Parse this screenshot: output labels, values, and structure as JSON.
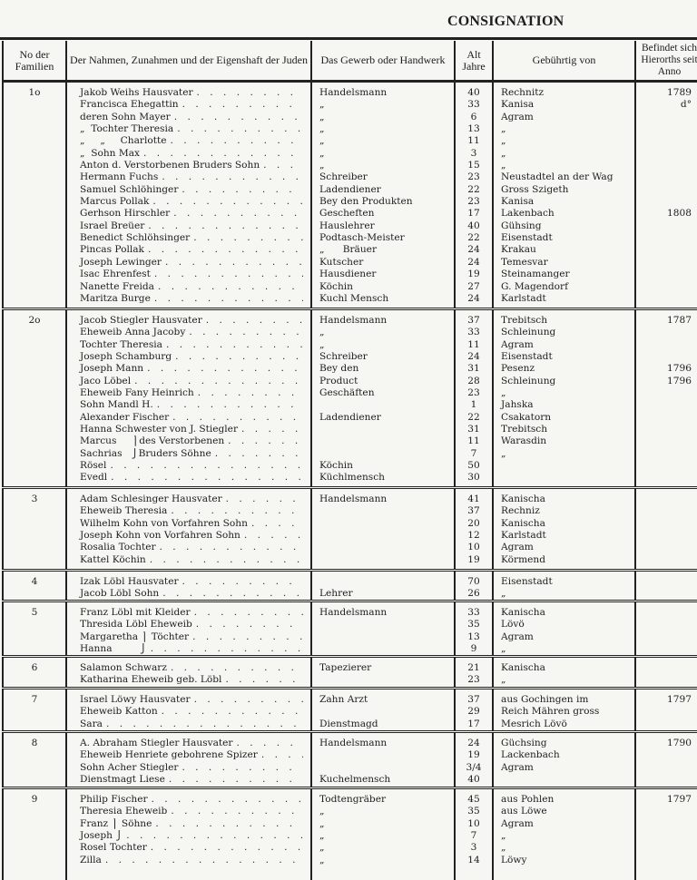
{
  "title": "CONSIGNATION",
  "headers": {
    "family_no": "No der Familien",
    "names": "Der Nahmen, Zunahmen und der Eigenshaft der Juden",
    "trade": "Das Gewerb oder Handwerk",
    "age": "Alt Jahre",
    "origin": "Gebührtig von",
    "since": "Befindet sich Hierorths seit Anno"
  },
  "families": [
    {
      "no": "1o",
      "members": [
        {
          "name": "Jakob Weihs Hausvater",
          "trade": "Handelsmann",
          "age": "40",
          "origin": "Rechnitz",
          "since": "1789"
        },
        {
          "name": "Francisca Ehegattin",
          "trade": "„",
          "age": "33",
          "origin": "Kanisa",
          "since": "d°"
        },
        {
          "name": "deren Sohn Mayer",
          "trade": "„",
          "age": "6",
          "origin": "Agram",
          "since": ""
        },
        {
          "name": "„  Tochter Theresia",
          "trade": "„",
          "age": "13",
          "origin": "„",
          "since": ""
        },
        {
          "name": "„     „     Charlotte",
          "trade": "„",
          "age": "11",
          "origin": "„",
          "since": ""
        },
        {
          "name": "„  Sohn Max",
          "trade": "„",
          "age": "3",
          "origin": "„",
          "since": ""
        },
        {
          "name": "Anton d. Verstorbenen Bruders Sohn",
          "trade": "„",
          "age": "15",
          "origin": "„",
          "since": ""
        },
        {
          "name": "Hermann Fuchs",
          "trade": "Schreiber",
          "age": "23",
          "origin": "Neustadtel an der Wag",
          "since": ""
        },
        {
          "name": "Samuel Schlöhinger",
          "trade": "Ladendiener",
          "age": "22",
          "origin": "Gross Szigeth",
          "since": ""
        },
        {
          "name": "Marcus Pollak",
          "trade": "Bey den Produkten",
          "age": "23",
          "origin": "Kanisa",
          "since": ""
        },
        {
          "name": "Gerhson Hirschler",
          "trade": "Gescheften",
          "age": "17",
          "origin": "Lakenbach",
          "since": "1808"
        },
        {
          "name": "Israel Breüer",
          "trade": "Hauslehrer",
          "age": "40",
          "origin": "Gühsing",
          "since": ""
        },
        {
          "name": "Benedict Schlöhsinger",
          "trade": "Podtasch-Meister",
          "age": "22",
          "origin": "Eisenstadt",
          "since": ""
        },
        {
          "name": "Pincas Pollak",
          "trade": "„      Bräuer",
          "age": "24",
          "origin": "Krakau",
          "since": ""
        },
        {
          "name": "Joseph Lewinger",
          "trade": "Kutscher",
          "age": "24",
          "origin": "Temesvar",
          "since": ""
        },
        {
          "name": "Isac Ehrenfest",
          "trade": "Hausdiener",
          "age": "19",
          "origin": "Steinamanger",
          "since": ""
        },
        {
          "name": "Nanette Freida",
          "trade": "Köchin",
          "age": "27",
          "origin": "G. Magendorf",
          "since": ""
        },
        {
          "name": "Maritza Burge",
          "trade": "Kuchl Mensch",
          "age": "24",
          "origin": "Karlstadt",
          "since": ""
        }
      ]
    },
    {
      "no": "2o",
      "members": [
        {
          "name": "Jacob Stiegler Hausvater",
          "trade": "Handelsmann",
          "age": "37",
          "origin": "Trebitsch",
          "since": "1787"
        },
        {
          "name": "Eheweib Anna Jacoby",
          "trade": "„",
          "age": "33",
          "origin": "Schleinung",
          "since": ""
        },
        {
          "name": "Tochter Theresia",
          "trade": "„",
          "age": "11",
          "origin": "Agram",
          "since": ""
        },
        {
          "name": "Joseph Schamburg",
          "trade": "Schreiber",
          "age": "24",
          "origin": "Eisenstadt",
          "since": ""
        },
        {
          "name": "Joseph Mann",
          "trade": "Bey den",
          "age": "31",
          "origin": "Pesenz",
          "since": "1796"
        },
        {
          "name": "Jaco Löbel",
          "trade": "Product",
          "age": "28",
          "origin": "Schleinung",
          "since": "1796"
        },
        {
          "name": "Eheweib Fany Heinrich",
          "trade": "Geschäften",
          "age": "23",
          "origin": "„",
          "since": ""
        },
        {
          "name": "Sohn Mandl H.",
          "trade": "",
          "age": "1",
          "origin": "Jahska",
          "since": ""
        },
        {
          "name": "Alexander Fischer",
          "trade": "Ladendiener",
          "age": "22",
          "origin": "Csakatorn",
          "since": ""
        },
        {
          "name": "Hanna Schwester von J. Stiegler",
          "trade": "",
          "age": "31",
          "origin": "Trebitsch",
          "since": ""
        },
        {
          "name": "Marcus     ⎫des Verstorbenen",
          "trade": "",
          "age": "11",
          "origin": "Warasdin",
          "since": ""
        },
        {
          "name": "Sachrias   ⎭Bruders Söhne",
          "trade": "",
          "age": "7",
          "origin": "„",
          "since": ""
        },
        {
          "name": "Rösel",
          "trade": "Köchin",
          "age": "50",
          "origin": "",
          "since": ""
        },
        {
          "name": "Evedl",
          "trade": "Küchlmensch",
          "age": "30",
          "origin": "",
          "since": ""
        }
      ]
    },
    {
      "no": "3",
      "members": [
        {
          "name": "Adam Schlesinger Hausvater",
          "trade": "Handelsmann",
          "age": "41",
          "origin": "Kanischa",
          "since": ""
        },
        {
          "name": "Eheweib Theresia",
          "trade": "",
          "age": "37",
          "origin": "Rechniz",
          "since": ""
        },
        {
          "name": "Wilhelm Kohn von Vorfahren Sohn",
          "trade": "",
          "age": "20",
          "origin": "Kanischa",
          "since": ""
        },
        {
          "name": "Joseph Kohn von Vorfahren Sohn",
          "trade": "",
          "age": "12",
          "origin": "Karlstadt",
          "since": ""
        },
        {
          "name": "Rosalia Tochter",
          "trade": "",
          "age": "10",
          "origin": "Agram",
          "since": ""
        },
        {
          "name": "Kattel Köchin",
          "trade": "",
          "age": "19",
          "origin": "Körmend",
          "since": ""
        }
      ]
    },
    {
      "no": "4",
      "members": [
        {
          "name": "Izak Löbl Hausvater",
          "trade": "",
          "age": "70",
          "origin": "Eisenstadt",
          "since": ""
        },
        {
          "name": "Jacob Löbl Sohn",
          "trade": "Lehrer",
          "age": "26",
          "origin": "„",
          "since": ""
        }
      ]
    },
    {
      "no": "5",
      "members": [
        {
          "name": "Franz Löbl mit Kleider",
          "trade": "Handelsmann",
          "age": "33",
          "origin": "Kanischa",
          "since": ""
        },
        {
          "name": "Thresida Löbl Eheweib",
          "trade": "",
          "age": "35",
          "origin": "Lövö",
          "since": ""
        },
        {
          "name": "Margaretha ⎫ Töchter",
          "trade": "",
          "age": "13",
          "origin": "Agram",
          "since": ""
        },
        {
          "name": "Hanna         ⎭",
          "trade": "",
          "age": "9",
          "origin": "„",
          "since": ""
        }
      ]
    },
    {
      "no": "6",
      "members": [
        {
          "name": "Salamon Schwarz",
          "trade": "Tapezierer",
          "age": "21",
          "origin": "Kanischa",
          "since": ""
        },
        {
          "name": "Katharina Eheweib geb. Löbl",
          "trade": "",
          "age": "23",
          "origin": "„",
          "since": ""
        }
      ]
    },
    {
      "no": "7",
      "members": [
        {
          "name": "Israel Löwy Hausvater",
          "trade": "Zahn Arzt",
          "age": "37",
          "origin": "aus Gochingen im",
          "since": "1797"
        },
        {
          "name": "Eheweib Katton",
          "trade": "",
          "age": "29",
          "origin": "Reich Mähren gross",
          "since": ""
        },
        {
          "name": "Sara",
          "trade": "Dienstmagd",
          "age": "17",
          "origin": "Mesrich Lövö",
          "since": ""
        }
      ]
    },
    {
      "no": "8",
      "members": [
        {
          "name": "A. Abraham Stiegler Hausvater",
          "trade": "Handelsmann",
          "age": "24",
          "origin": "Güchsing",
          "since": "1790"
        },
        {
          "name": "Eheweib Henriete gebohrene Spizer",
          "trade": "",
          "age": "19",
          "origin": "Lackenbach",
          "since": ""
        },
        {
          "name": "Sohn Acher Stiegler",
          "trade": "",
          "age": "3/4",
          "origin": "Agram",
          "since": ""
        },
        {
          "name": "Dienstmagt Liese",
          "trade": "Kuchelmensch",
          "age": "40",
          "origin": "",
          "since": ""
        }
      ]
    },
    {
      "no": "9",
      "members": [
        {
          "name": "Philip Fischer",
          "trade": "Todtengräber",
          "age": "45",
          "origin": "aus Pohlen",
          "since": "1797"
        },
        {
          "name": "Theresia Eheweib",
          "trade": "„",
          "age": "35",
          "origin": "aus Löwe",
          "since": ""
        },
        {
          "name": "Franz ⎫ Söhne",
          "trade": "„",
          "age": "10",
          "origin": "Agram",
          "since": ""
        },
        {
          "name": "Joseph ⎭",
          "trade": "„",
          "age": "7",
          "origin": "„",
          "since": ""
        },
        {
          "name": "Rosel Tochter",
          "trade": "„",
          "age": "3",
          "origin": "„",
          "since": ""
        },
        {
          "name": "Zilla",
          "trade": "„",
          "age": "14",
          "origin": "Löwy",
          "since": ""
        }
      ]
    }
  ]
}
